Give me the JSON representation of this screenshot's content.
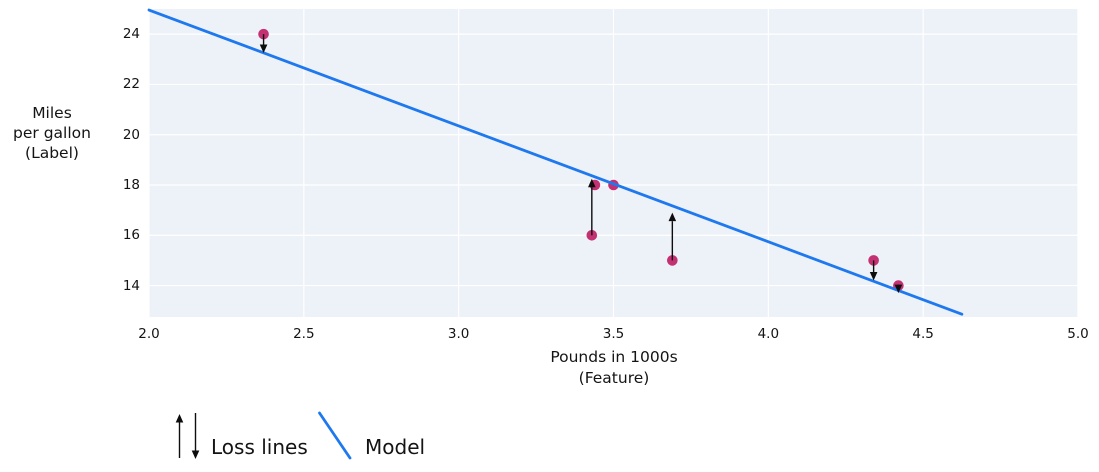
{
  "chart_data": {
    "type": "scatter",
    "title": "",
    "xlabel_lines": [
      "Pounds in 1000s",
      "(Feature)"
    ],
    "ylabel_lines": [
      "Miles",
      "per gallon",
      "(Label)"
    ],
    "xlim": [
      2.0,
      5.0
    ],
    "ylim": [
      12.75,
      25.0
    ],
    "x_tick_values": [
      2.0,
      2.5,
      3.0,
      3.5,
      4.0,
      4.5,
      5.0
    ],
    "x_tick_labels": [
      "2.0",
      "2.5",
      "3.0",
      "3.5",
      "4.0",
      "4.5",
      "5.0"
    ],
    "y_tick_values": [
      14,
      16,
      18,
      20,
      22,
      24
    ],
    "y_tick_labels": [
      "14",
      "16",
      "18",
      "20",
      "22",
      "24"
    ],
    "grid": true,
    "legend_position": "bottom-left",
    "points": [
      {
        "x": 2.37,
        "y": 24
      },
      {
        "x": 3.43,
        "y": 16
      },
      {
        "x": 3.44,
        "y": 18
      },
      {
        "x": 3.5,
        "y": 18
      },
      {
        "x": 3.69,
        "y": 15
      },
      {
        "x": 4.34,
        "y": 15
      },
      {
        "x": 4.42,
        "y": 14
      }
    ],
    "model_line": {
      "slope": -4.61,
      "intercept": 34.2,
      "x1": 2.0,
      "y1": 24.96,
      "x2": 4.625,
      "y2": 12.86
    },
    "loss_lines": [
      {
        "x": 2.37,
        "point_y": 24,
        "line_y": 23.25,
        "direction": "down"
      },
      {
        "x": 3.43,
        "point_y": 16,
        "line_y": 18.25,
        "direction": "up"
      },
      {
        "x": 3.69,
        "point_y": 15,
        "line_y": 16.9,
        "direction": "up"
      },
      {
        "x": 4.34,
        "point_y": 15,
        "line_y": 14.2,
        "direction": "down"
      },
      {
        "x": 4.42,
        "point_y": 14,
        "line_y": 13.7,
        "direction": "down"
      }
    ],
    "colors": {
      "plot_bg": "#edf1f8",
      "grid": "#ffffff",
      "model": "#1e78ee",
      "point": "#c43172",
      "arrow": "#0d0d0d",
      "text": "#141414"
    }
  },
  "legend": {
    "loss_lines_label": "Loss lines",
    "model_label": "Model"
  }
}
